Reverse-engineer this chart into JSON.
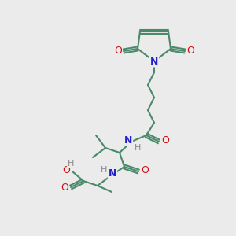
{
  "bg_color": "#ebebeb",
  "bond_color": "#4a8a6a",
  "n_color": "#2222cc",
  "o_color": "#cc1111",
  "h_color": "#888888",
  "line_width": 1.5,
  "figsize": [
    3.0,
    3.0
  ],
  "dpi": 100,
  "xlim": [
    0,
    300
  ],
  "ylim": [
    0,
    300
  ]
}
